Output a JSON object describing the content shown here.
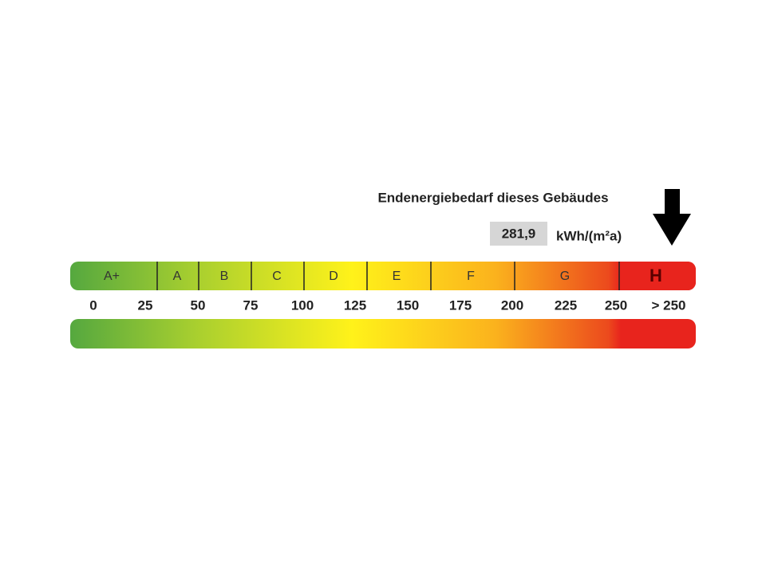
{
  "header": {
    "title": "Endenergiebedarf dieses Gebäudes",
    "value": "281,9",
    "unit": "kWh/(m²a)"
  },
  "classes": [
    "A+",
    "A",
    "B",
    "C",
    "D",
    "E",
    "F",
    "G",
    "H"
  ],
  "ticks": [
    "0",
    "25",
    "50",
    "75",
    "100",
    "125",
    "150",
    "175",
    "200",
    "225",
    "250",
    "> 250"
  ]
}
